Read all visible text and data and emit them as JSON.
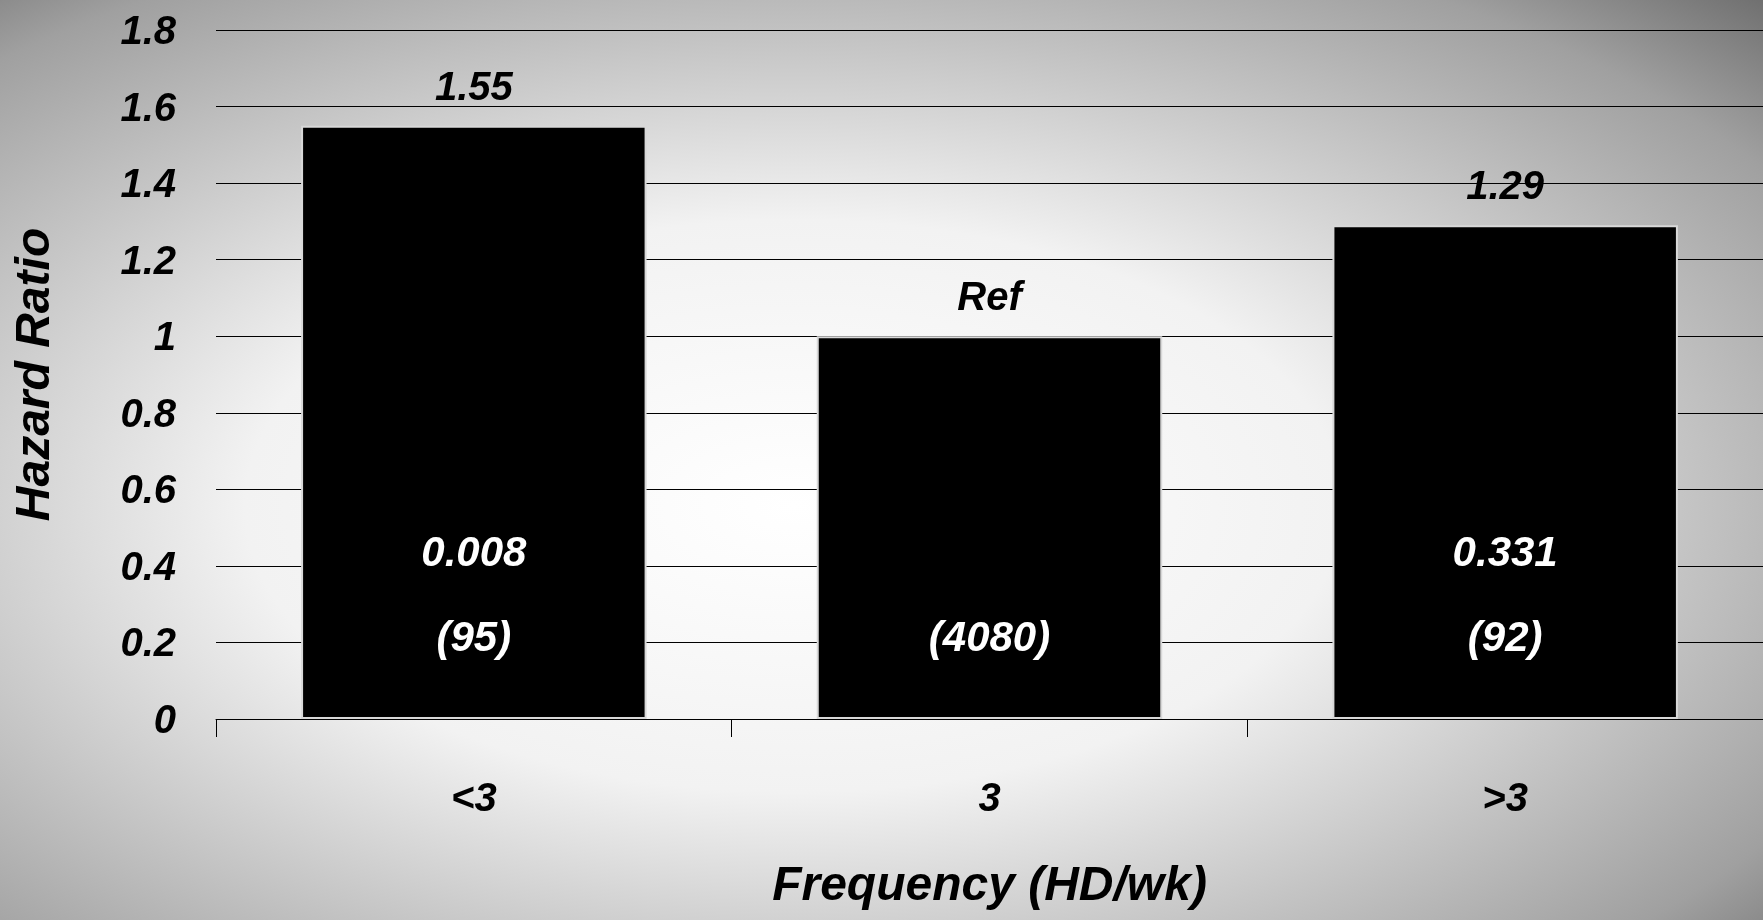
{
  "chart_data": {
    "type": "bar",
    "xlabel": "Frequency (HD/wk)",
    "ylabel": "Hazard Ratio",
    "categories": [
      "<3",
      "3",
      ">3"
    ],
    "values": [
      1.55,
      1,
      1.29
    ],
    "color": "#000000",
    "value_labels": [
      "1.55",
      "Ref",
      "1.29"
    ],
    "ylim": [
      0,
      1.8
    ],
    "yticks": [
      0,
      0.2,
      0.4,
      0.6,
      0.8,
      1,
      1.2,
      1.4,
      1.6,
      1.8
    ],
    "grid": "y",
    "annotations": [
      "0.008\n(95)",
      "(4080)",
      "0.331\n(92)"
    ]
  }
}
